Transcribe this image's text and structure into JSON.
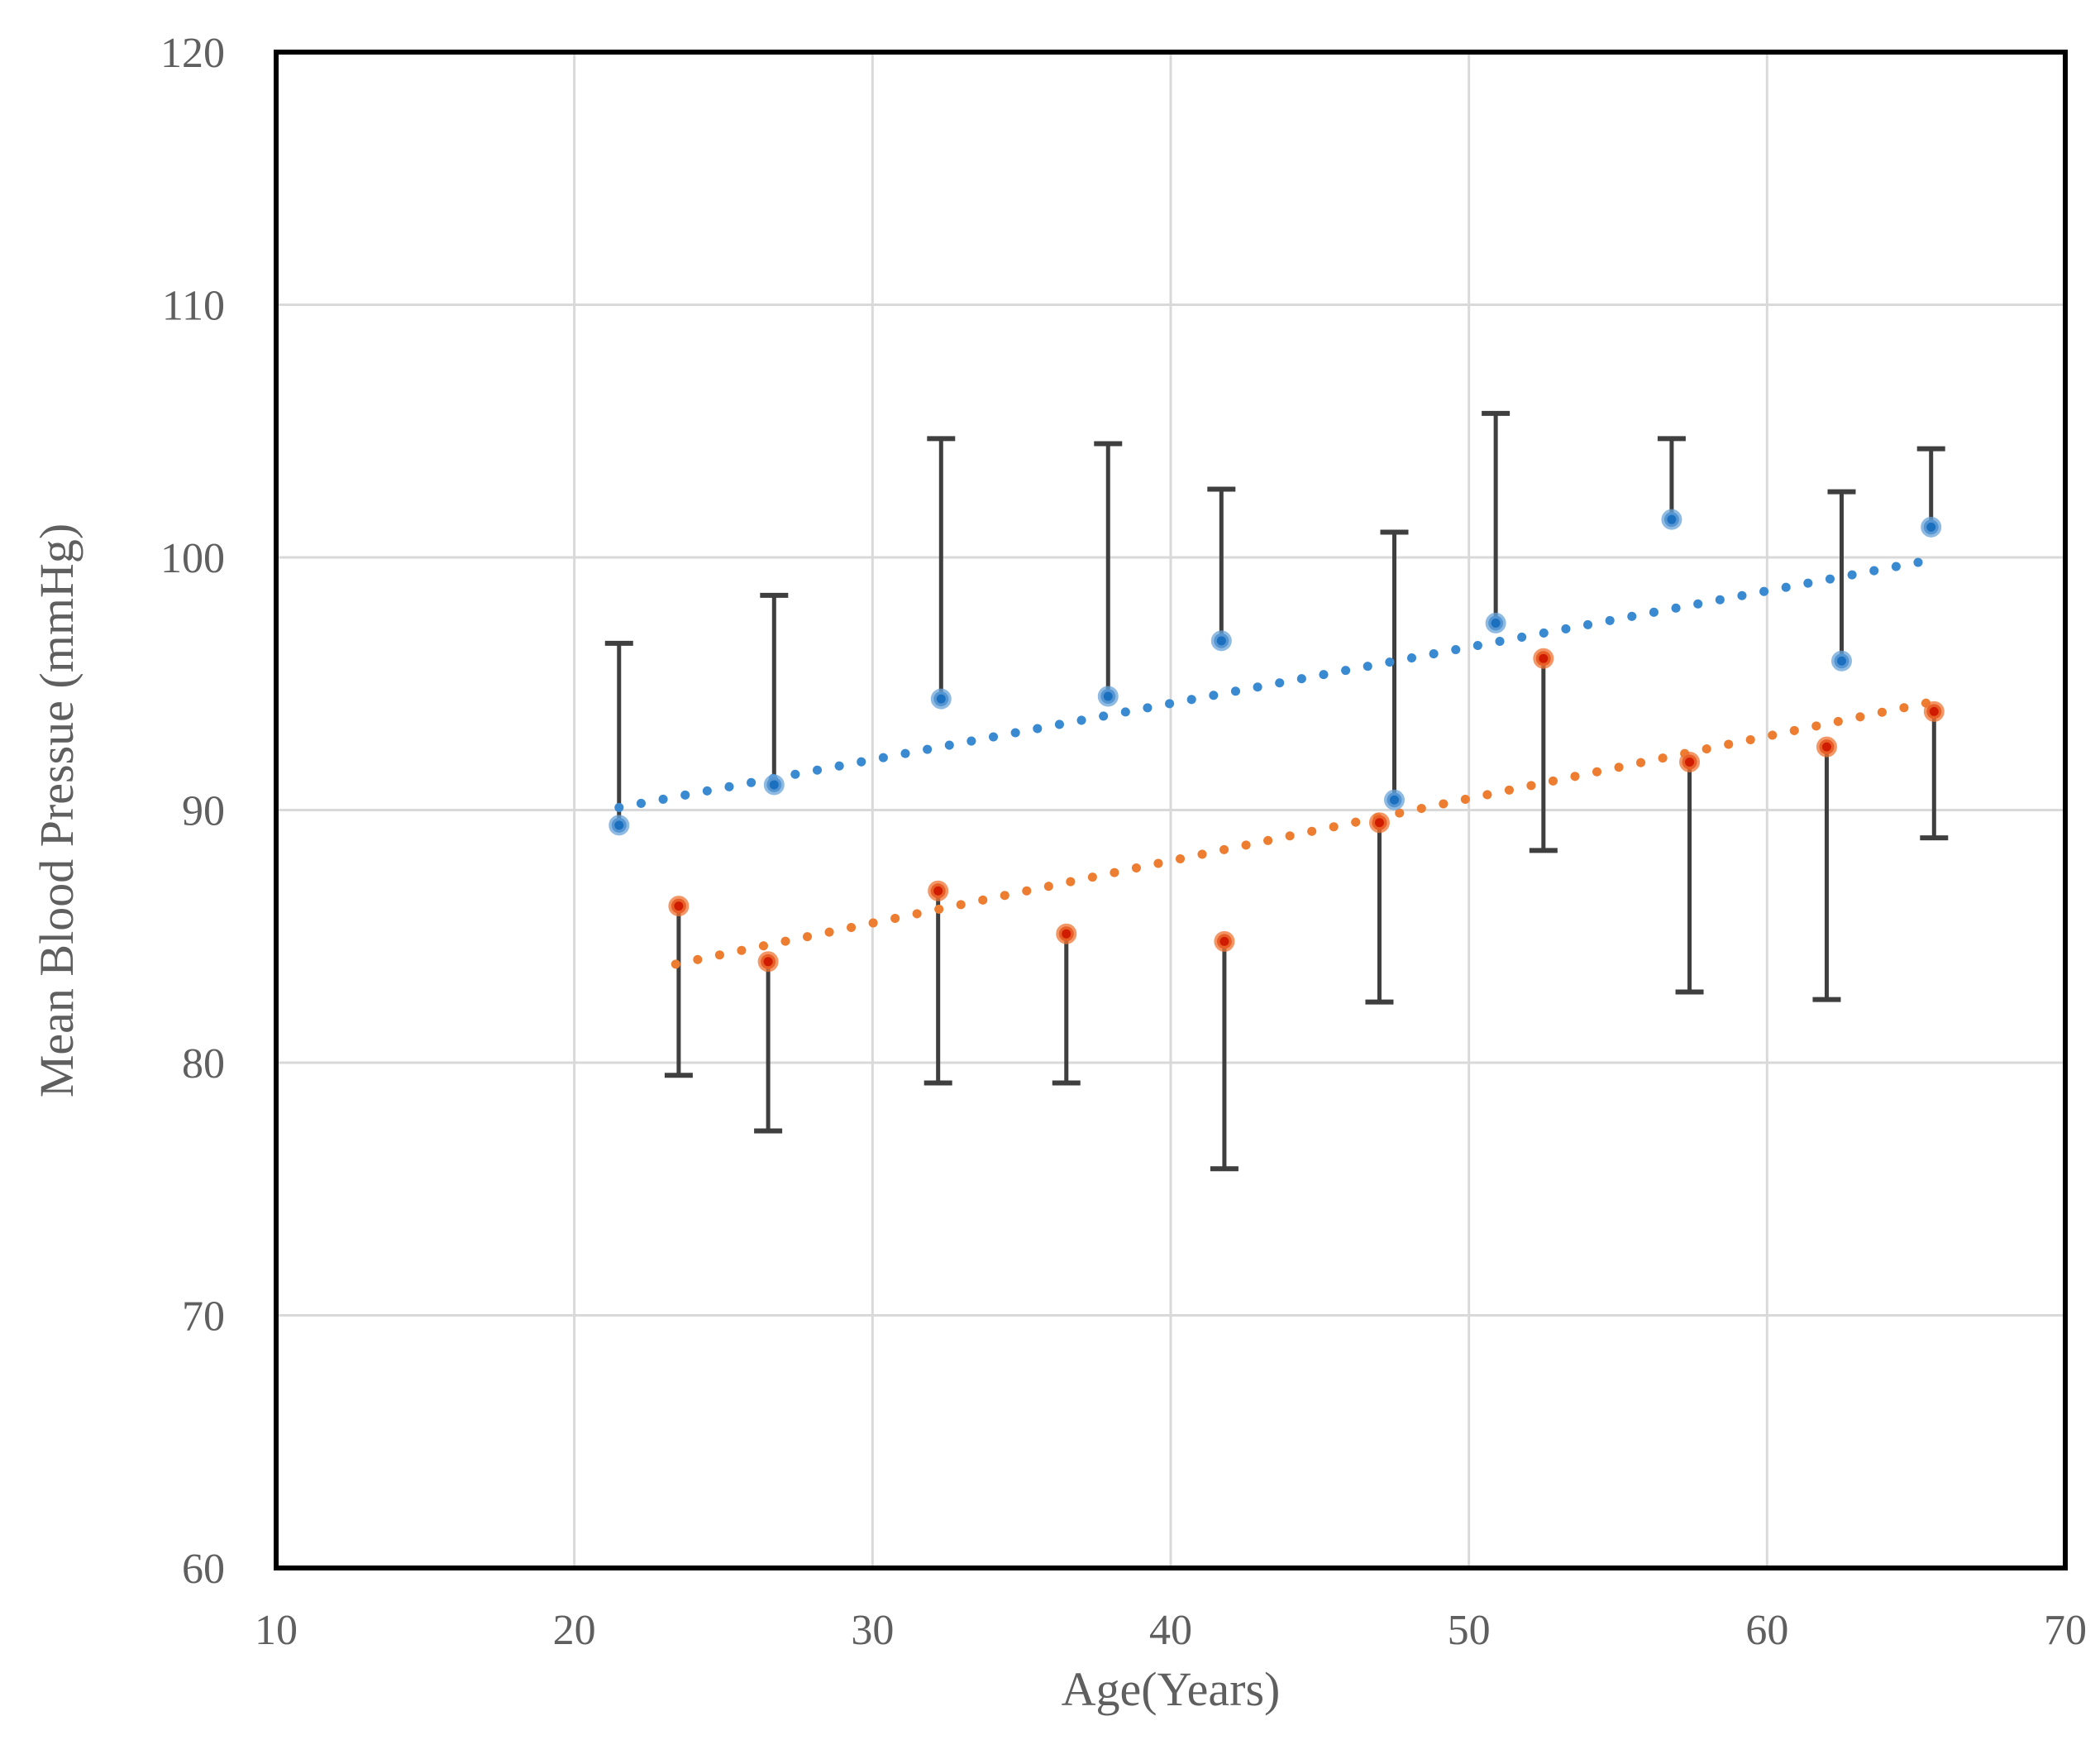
{
  "chart_data": {
    "type": "scatter",
    "title": "",
    "xlabel": "Age(Years)",
    "ylabel": "Mean Blood Pressue (mmHg)",
    "xlim": [
      10,
      70
    ],
    "ylim": [
      60,
      120
    ],
    "xticks": [
      10,
      20,
      30,
      40,
      50,
      60,
      70
    ],
    "yticks": [
      60,
      70,
      80,
      90,
      100,
      110,
      120
    ],
    "grid": true,
    "legend": "none",
    "colors": {
      "blue_marker": "#1a6fbf",
      "blue_marker_halo": "#6aa3d8",
      "red_marker": "#cf1c01",
      "red_marker_halo": "#ef7434",
      "blue_trendline": "#3a8ad2",
      "orange_trendline": "#ed7d31",
      "error_bar": "#3f3f3f",
      "gridline": "#d9d9d9",
      "plot_border": "#000000",
      "label_text": "#5f5f5f"
    },
    "series": [
      {
        "name": "blue-series",
        "marker_color": "#1a6fbf",
        "marker_halo": "#6aa3d8",
        "error_direction": "plus",
        "points": [
          {
            "x": 21.5,
            "y": 89.4,
            "err_to": 96.6
          },
          {
            "x": 26.7,
            "y": 91.0,
            "err_to": 98.5
          },
          {
            "x": 32.3,
            "y": 94.4,
            "err_to": 104.7
          },
          {
            "x": 37.9,
            "y": 94.5,
            "err_to": 104.5
          },
          {
            "x": 41.7,
            "y": 96.7,
            "err_to": 102.7
          },
          {
            "x": 47.5,
            "y": 90.4,
            "err_to": 101.0
          },
          {
            "x": 50.9,
            "y": 97.4,
            "err_to": 105.7
          },
          {
            "x": 56.8,
            "y": 101.5,
            "err_to": 104.7
          },
          {
            "x": 62.5,
            "y": 95.9,
            "err_to": 102.6
          },
          {
            "x": 65.5,
            "y": 101.2,
            "err_to": 104.3
          }
        ],
        "trendline": {
          "x1": 21.5,
          "y1": 90.1,
          "x2": 65.5,
          "y2": 99.9,
          "color": "#3a8ad2"
        }
      },
      {
        "name": "red-series",
        "marker_color": "#cf1c01",
        "marker_halo": "#ef7434",
        "error_direction": "minus",
        "points": [
          {
            "x": 23.5,
            "y": 86.2,
            "err_to": 79.5
          },
          {
            "x": 26.5,
            "y": 84.0,
            "err_to": 77.3
          },
          {
            "x": 32.2,
            "y": 86.8,
            "err_to": 79.2
          },
          {
            "x": 36.5,
            "y": 85.1,
            "err_to": 79.2
          },
          {
            "x": 41.8,
            "y": 84.8,
            "err_to": 75.8
          },
          {
            "x": 47.0,
            "y": 89.5,
            "err_to": 82.4
          },
          {
            "x": 52.5,
            "y": 96.0,
            "err_to": 88.4
          },
          {
            "x": 57.4,
            "y": 91.9,
            "err_to": 82.8
          },
          {
            "x": 62.0,
            "y": 92.5,
            "err_to": 82.5
          },
          {
            "x": 65.6,
            "y": 93.9,
            "err_to": 88.9
          }
        ],
        "trendline": {
          "x1": 23.4,
          "y1": 83.9,
          "x2": 65.6,
          "y2": 94.3,
          "color": "#ed7d31"
        }
      }
    ]
  }
}
